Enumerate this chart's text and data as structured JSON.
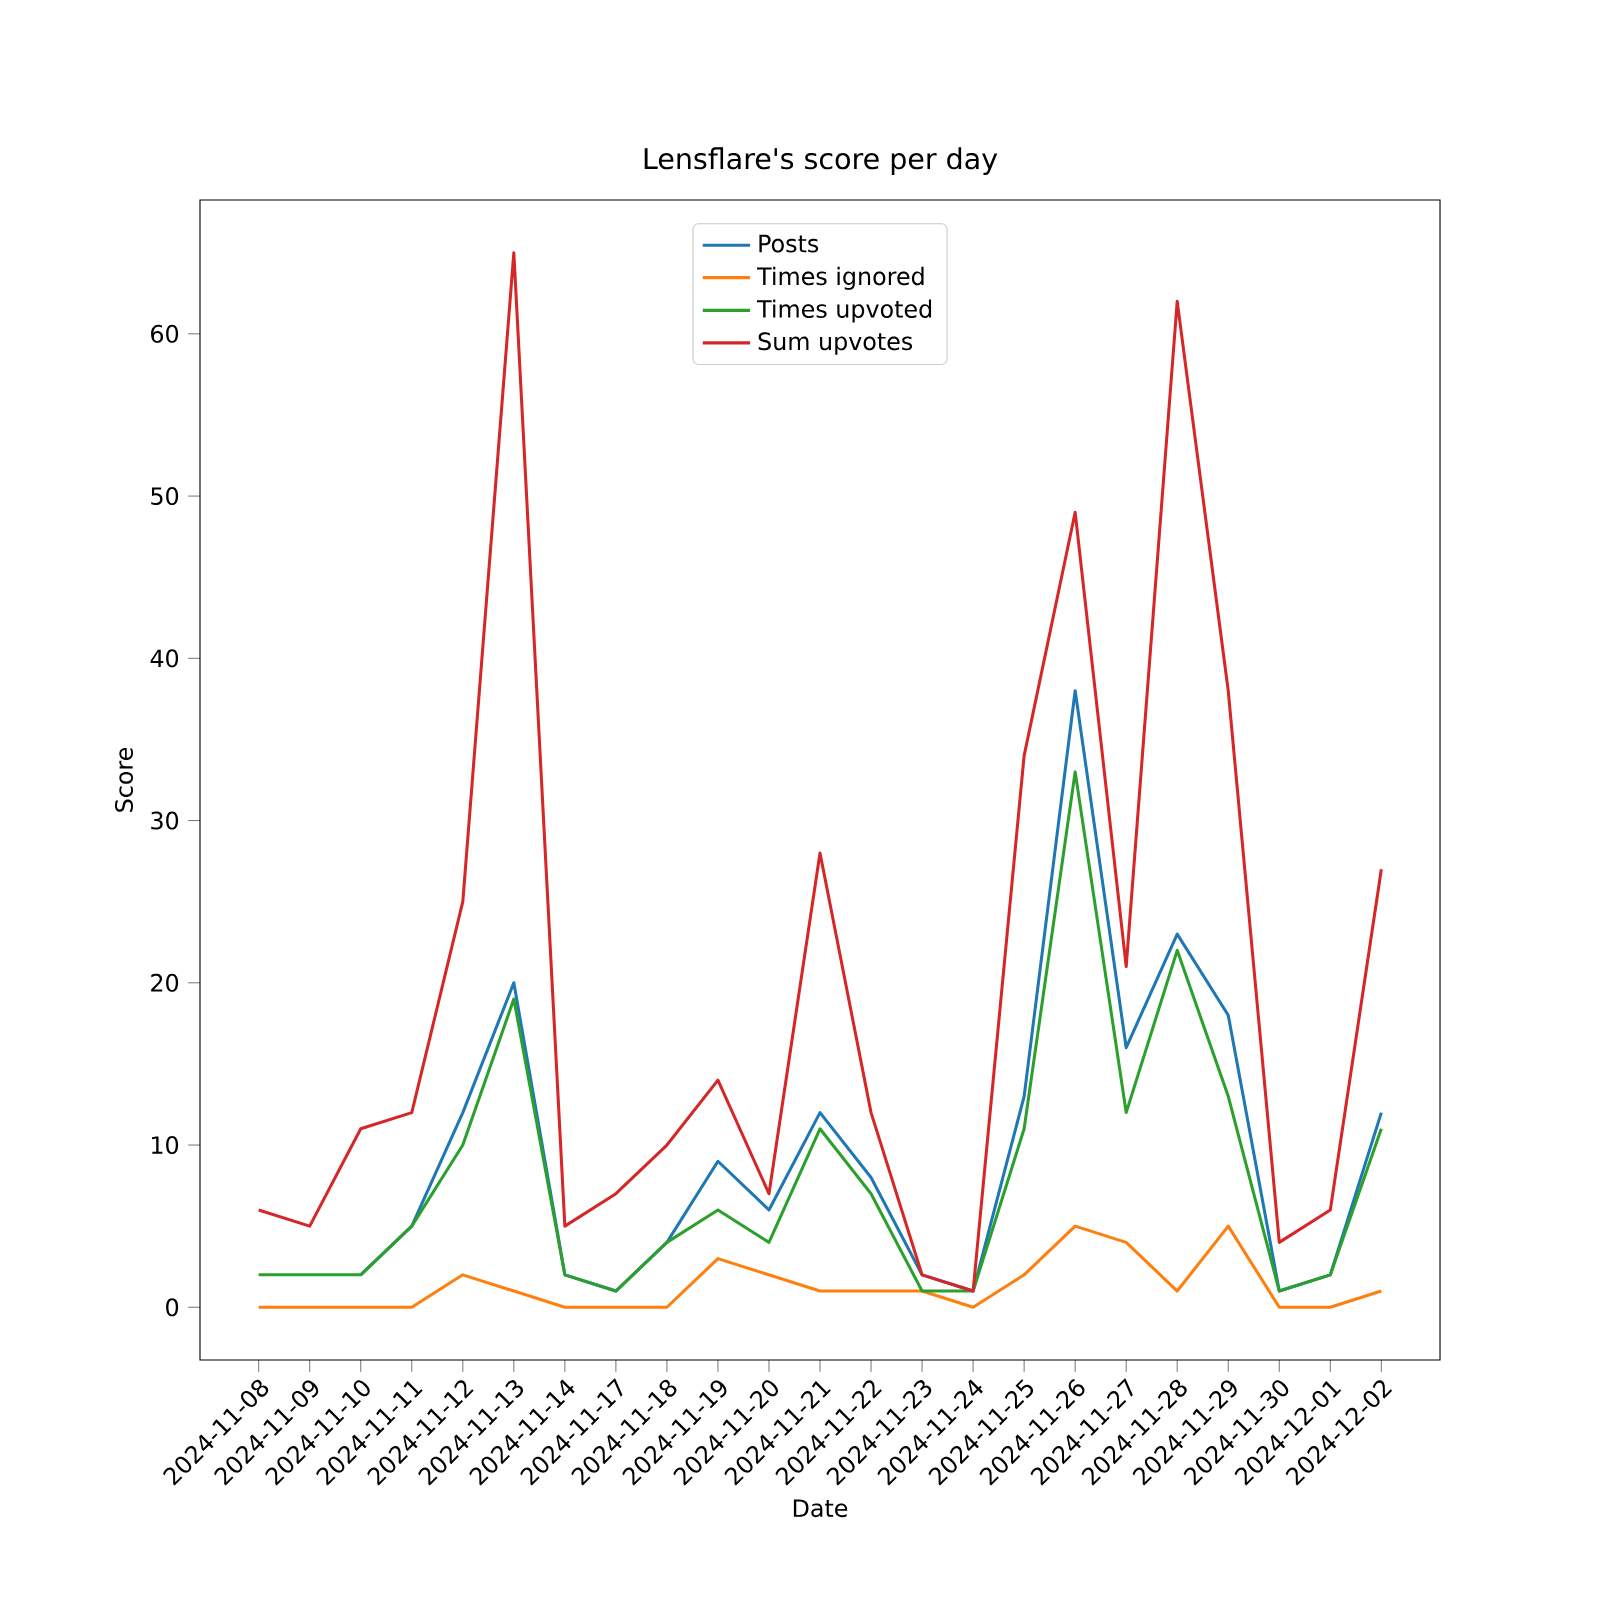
{
  "chart_data": {
    "type": "line",
    "title": "Lensflare's score per day",
    "xlabel": "Date",
    "ylabel": "Score",
    "categories": [
      "2024-11-08",
      "2024-11-09",
      "2024-11-10",
      "2024-11-11",
      "2024-11-12",
      "2024-11-13",
      "2024-11-14",
      "2024-11-17",
      "2024-11-18",
      "2024-11-19",
      "2024-11-20",
      "2024-11-21",
      "2024-11-22",
      "2024-11-23",
      "2024-11-24",
      "2024-11-25",
      "2024-11-26",
      "2024-11-27",
      "2024-11-28",
      "2024-11-29",
      "2024-11-30",
      "2024-12-01",
      "2024-12-02"
    ],
    "series": [
      {
        "name": "Posts",
        "color": "#1f77b4",
        "values": [
          null,
          null,
          2,
          5,
          12,
          20,
          2,
          1,
          4,
          9,
          6,
          12,
          8,
          2,
          1,
          13,
          38,
          16,
          23,
          18,
          1,
          2,
          12
        ]
      },
      {
        "name": "Times ignored",
        "color": "#ff7f0e",
        "values": [
          0,
          0,
          0,
          0,
          2,
          1,
          0,
          0,
          0,
          3,
          2,
          1,
          1,
          1,
          0,
          2,
          5,
          4,
          1,
          5,
          0,
          0,
          1
        ]
      },
      {
        "name": "Times upvoted",
        "color": "#2ca02c",
        "values": [
          2,
          2,
          2,
          5,
          10,
          19,
          2,
          1,
          4,
          6,
          4,
          11,
          7,
          1,
          1,
          11,
          33,
          12,
          22,
          13,
          1,
          2,
          11
        ]
      },
      {
        "name": "Sum upvotes",
        "color": "#d62728",
        "values": [
          6,
          5,
          11,
          12,
          25,
          65,
          5,
          7,
          10,
          14,
          7,
          28,
          12,
          2,
          1,
          34,
          49,
          21,
          62,
          38,
          4,
          6,
          27
        ]
      }
    ],
    "ylim": [
      -3.25,
      68.25
    ],
    "yticks": [
      0,
      10,
      20,
      30,
      40,
      50,
      60
    ],
    "legend": "top"
  }
}
